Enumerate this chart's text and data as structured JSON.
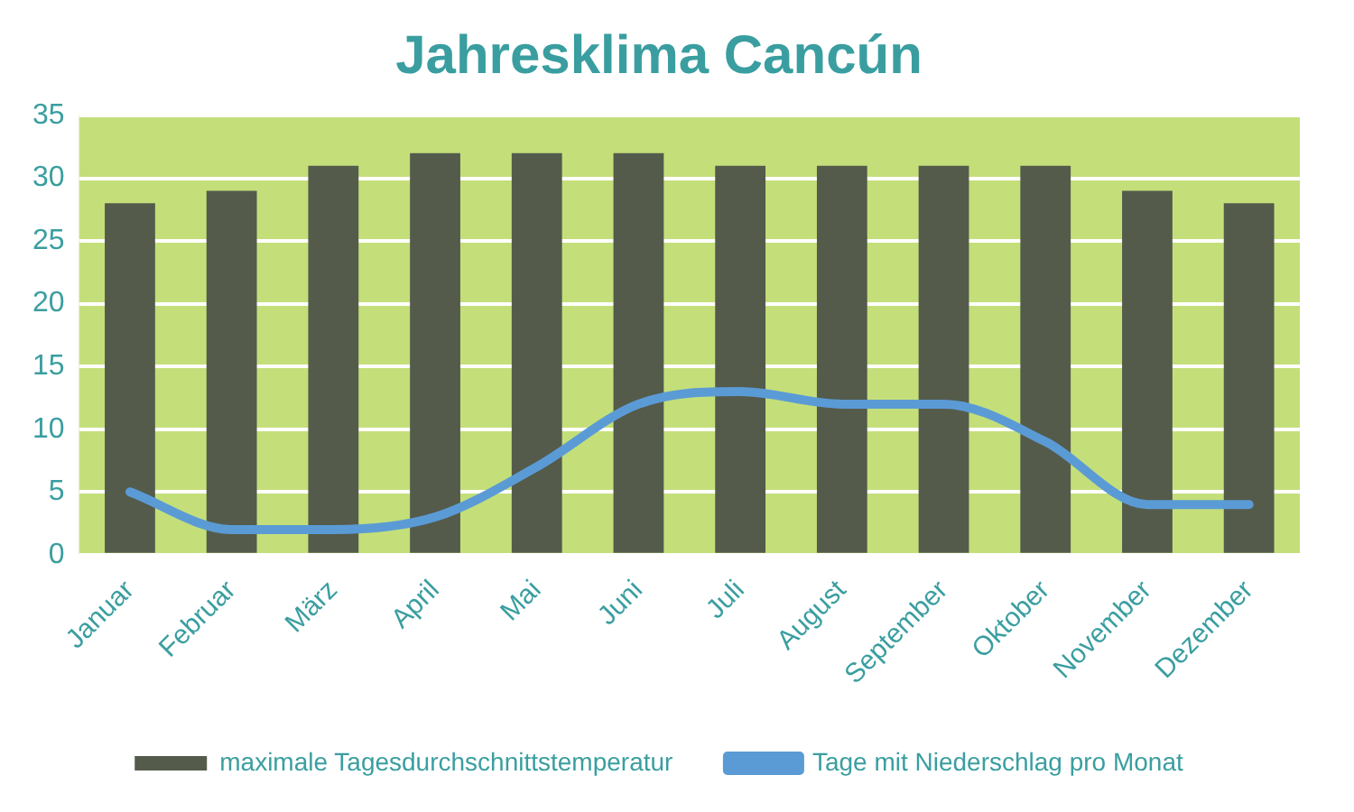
{
  "chart_data": {
    "type": "bar",
    "title": "Jahresklima Cancún",
    "categories": [
      "Januar",
      "Februar",
      "März",
      "April",
      "Mai",
      "Juni",
      "Juli",
      "August",
      "September",
      "Oktober",
      "November",
      "Dezember"
    ],
    "series": [
      {
        "name": "maximale Tagesdurchschnittstemperatur",
        "color": "#545b4b",
        "values": [
          28,
          29,
          31,
          32,
          32,
          32,
          31,
          31,
          31,
          31,
          29,
          28
        ]
      },
      {
        "name": "Tage mit Niederschlag pro Monat",
        "type": "line",
        "color": "#5b9bd5",
        "values": [
          5,
          2,
          2,
          3,
          7,
          12,
          13,
          12,
          12,
          9,
          4,
          4
        ]
      }
    ],
    "ylim": [
      0,
      35
    ],
    "yticks": [
      0,
      5,
      10,
      15,
      20,
      25,
      30,
      35
    ],
    "grid": "y",
    "legend": "bottom",
    "marker": "none"
  }
}
